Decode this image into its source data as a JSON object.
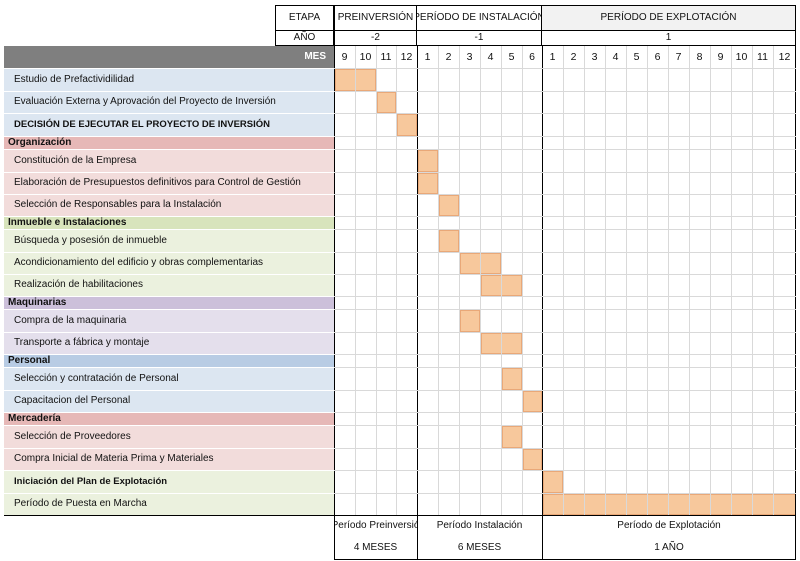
{
  "header": {
    "etapa_label": "ETAPA",
    "ano_label": "AÑO",
    "mes_label": "MES",
    "stages": [
      {
        "name": "PREINVERSIÓN",
        "year": "-2",
        "months": [
          "9",
          "10",
          "11",
          "12"
        ]
      },
      {
        "name": "PERÍODO DE INSTALACIÓN",
        "year": "-1",
        "months": [
          "1",
          "2",
          "3",
          "4",
          "5",
          "6"
        ]
      },
      {
        "name": "PERÍODO DE EXPLOTACIÓN",
        "year": "1",
        "months": [
          "1",
          "2",
          "3",
          "4",
          "5",
          "6",
          "7",
          "8",
          "9",
          "10",
          "11",
          "12"
        ]
      }
    ]
  },
  "colors": {
    "mes_bg": "#7f7f7f",
    "bar": "#f7c89c",
    "blue_row": "#dce6f1",
    "red_row": "#f2dcdb",
    "green_row": "#ebf1de",
    "purple_row": "#e4dfec",
    "blue_cat": "#b8cce4",
    "red_cat": "#e6b8b7",
    "green_cat": "#d8e4bc",
    "purple_cat": "#ccc0da",
    "stage3_header": "#f2f2f2"
  },
  "rows": [
    {
      "label": "Estudio de Prefactividilidad",
      "kind": "task",
      "color": "blue",
      "start": 0,
      "span": 2
    },
    {
      "label": "Evaluación Externa y Aprovación del Proyecto de Inversión",
      "kind": "task",
      "color": "blue",
      "start": 2,
      "span": 1
    },
    {
      "label": "DECISIÓN DE EJECUTAR EL PROYECTO DE INVERSIÓN",
      "kind": "milestone",
      "color": "blue",
      "start": 3,
      "span": 1
    },
    {
      "label": "Organización",
      "kind": "category",
      "color": "red"
    },
    {
      "label": "Constitución de la Empresa",
      "kind": "task",
      "color": "red",
      "start": 4,
      "span": 1
    },
    {
      "label": "Elaboración de Presupuestos definitivos para Control de Gestión",
      "kind": "task",
      "color": "red",
      "start": 4,
      "span": 1
    },
    {
      "label": "Selección de Responsables para la Instalación",
      "kind": "task",
      "color": "red",
      "start": 5,
      "span": 1
    },
    {
      "label": "Inmueble e Instalaciones",
      "kind": "category",
      "color": "green"
    },
    {
      "label": "Búsqueda y posesión de inmueble",
      "kind": "task",
      "color": "green",
      "start": 5,
      "span": 1
    },
    {
      "label": "Acondicionamiento del edificio y obras complementarias",
      "kind": "task",
      "color": "green",
      "start": 6,
      "span": 2
    },
    {
      "label": "Realización de habilitaciones",
      "kind": "task",
      "color": "green",
      "start": 7,
      "span": 2
    },
    {
      "label": "Maquinarias",
      "kind": "category",
      "color": "purple"
    },
    {
      "label": "Compra de la maquinaria",
      "kind": "task",
      "color": "purple",
      "start": 6,
      "span": 1
    },
    {
      "label": "Transporte a fábrica y montaje",
      "kind": "task",
      "color": "purple",
      "start": 7,
      "span": 2
    },
    {
      "label": "Personal",
      "kind": "category",
      "color": "blue"
    },
    {
      "label": "Selección y contratación de Personal",
      "kind": "task",
      "color": "blue",
      "start": 8,
      "span": 1
    },
    {
      "label": "Capacitacion del Personal",
      "kind": "task",
      "color": "blue",
      "start": 9,
      "span": 1
    },
    {
      "label": "Mercadería",
      "kind": "category",
      "color": "red"
    },
    {
      "label": "Selección de Proveedores",
      "kind": "task",
      "color": "red",
      "start": 8,
      "span": 1
    },
    {
      "label": "Compra Inicial de Materia Prima y Materiales",
      "kind": "task",
      "color": "red",
      "start": 9,
      "span": 1
    },
    {
      "label": "Iniciación del Plan de Explotación",
      "kind": "milestone",
      "color": "green",
      "start": 10,
      "span": 1
    },
    {
      "label": "Período de Puesta en Marcha",
      "kind": "task",
      "color": "green",
      "start": 10,
      "span": 12
    }
  ],
  "footer": [
    {
      "name": "Período Preinversió",
      "duration": "4 MESES"
    },
    {
      "name": "Período Instalación",
      "duration": "6 MESES"
    },
    {
      "name": "Período de Explotación",
      "duration": "1 AÑO"
    }
  ]
}
